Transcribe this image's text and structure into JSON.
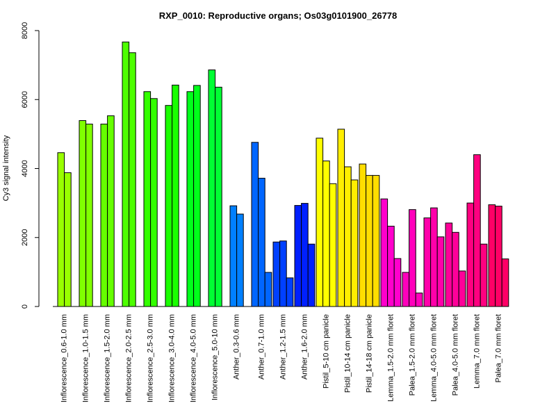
{
  "chart_data": {
    "type": "bar",
    "title": "RXP_0010: Reproductive organs; Os03g0101900_26778",
    "xlabel": "",
    "ylabel": "Cy3 signal intensity",
    "ylim": [
      0,
      8000
    ],
    "yticks": [
      0,
      2000,
      4000,
      6000,
      8000
    ],
    "grid": false,
    "groups": [
      {
        "label": "Inflorescence_0.6-1.0 mm",
        "color": "#99FF00",
        "values": [
          4460,
          3880
        ]
      },
      {
        "label": "Inflorescence_1.0-1.5 mm",
        "color": "#80FF00",
        "values": [
          5390,
          5290
        ]
      },
      {
        "label": "Inflorescence_1.5-2.0 mm",
        "color": "#66FF00",
        "values": [
          5290,
          5530
        ]
      },
      {
        "label": "Inflorescence_2.0-2.5 mm",
        "color": "#4DFF00",
        "values": [
          7670,
          7360
        ]
      },
      {
        "label": "Inflorescence_2.5-3.0 mm",
        "color": "#33FF00",
        "values": [
          6230,
          6030
        ]
      },
      {
        "label": "Inflorescence_3.0-4.0 mm",
        "color": "#1AFF00",
        "values": [
          5830,
          6420
        ]
      },
      {
        "label": "Inflorescence_4.0-5.0 mm",
        "color": "#00FF1A",
        "values": [
          6230,
          6410
        ]
      },
      {
        "label": "Inflorescence_5.0-10 mm",
        "color": "#00FF33",
        "values": [
          6860,
          6360
        ]
      },
      {
        "label": "Anther_0.3-0.6 mm",
        "color": "#0080FF",
        "values": [
          2920,
          2680
        ]
      },
      {
        "label": "Anther_0.7-1.0 mm",
        "color": "#0066FF",
        "values": [
          4760,
          3720,
          990
        ]
      },
      {
        "label": "Anther_1.2-1.5 mm",
        "color": "#0040FF",
        "values": [
          1870,
          1900,
          830
        ]
      },
      {
        "label": "Anther_1.6-2.0 mm",
        "color": "#0020FF",
        "values": [
          2930,
          2990,
          1810
        ]
      },
      {
        "label": "Pistil_5-10 cm panicle",
        "color": "#FFFF00",
        "values": [
          4880,
          4220,
          3560
        ]
      },
      {
        "label": "Pistil_10-14 cm panicle",
        "color": "#FFEE00",
        "values": [
          5140,
          4050,
          3670
        ]
      },
      {
        "label": "Pistil_14-18 cm panicle",
        "color": "#FFDD00",
        "values": [
          4130,
          3800,
          3800
        ]
      },
      {
        "label": "Lemma_1.5-2.0 mm floret",
        "color": "#FF00CC",
        "values": [
          3120,
          2330,
          1390
        ]
      },
      {
        "label": "Palea_1.5-2.0 mm floret",
        "color": "#FF00BB",
        "values": [
          990,
          2810,
          390
        ]
      },
      {
        "label": "Lemma_4.0-5.0 mm floret",
        "color": "#FF00AA",
        "values": [
          2570,
          2860,
          2020
        ]
      },
      {
        "label": "Palea_4.0-5.0 mm floret",
        "color": "#FF0099",
        "values": [
          2420,
          2150,
          1030
        ]
      },
      {
        "label": "Lemma_7.0 mm floret",
        "color": "#FF0080",
        "values": [
          3000,
          4400,
          1810
        ]
      },
      {
        "label": "Palea_7.0 mm floret",
        "color": "#FF0066",
        "values": [
          2950,
          2910,
          1380
        ]
      }
    ]
  }
}
